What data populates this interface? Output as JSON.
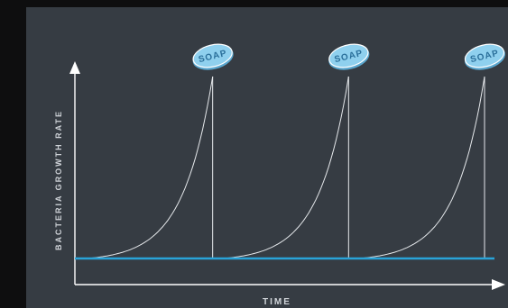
{
  "chart_data": {
    "type": "line",
    "xlabel": "TIME",
    "ylabel": "BACTERIA GROWTH RATE",
    "xlim": [
      0,
      3
    ],
    "ylim": [
      0,
      1
    ],
    "grid": false,
    "baseline": {
      "y": 0
    },
    "series": [
      {
        "kind": "exponential-rise",
        "start": 0.08,
        "end": 1.0,
        "peak": 1.0
      },
      {
        "kind": "exponential-rise",
        "start": 1.08,
        "end": 2.0,
        "peak": 1.0
      },
      {
        "kind": "exponential-rise",
        "start": 2.08,
        "end": 3.0,
        "peak": 1.0
      }
    ],
    "annotations": [
      {
        "x": 1.0,
        "label": "SOAP",
        "icon": "soap-bar-icon"
      },
      {
        "x": 2.0,
        "label": "SOAP",
        "icon": "soap-bar-icon"
      },
      {
        "x": 3.0,
        "label": "SOAP",
        "icon": "soap-bar-icon"
      }
    ],
    "colors": {
      "panel": "#363c43",
      "outer": "#0e0e0f",
      "axis": "#ffffff",
      "curve": "#e6e9ec",
      "baseline": "#29a3d8",
      "soap_fill": "#8fd0ee",
      "soap_text": "#2a6f9a",
      "label": "#cfd3d8"
    }
  }
}
